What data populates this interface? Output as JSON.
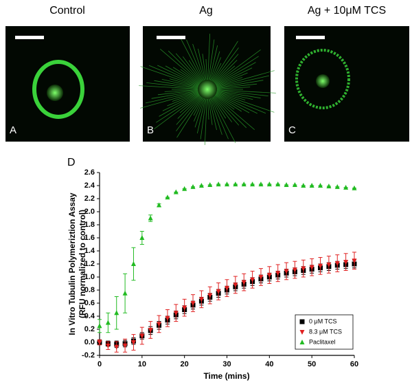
{
  "panels": [
    {
      "title": "Control",
      "letter": "A"
    },
    {
      "title": "Ag",
      "letter": "B"
    },
    {
      "title": "Ag + 10μM TCS",
      "letter": "C"
    }
  ],
  "chart_data": {
    "type": "scatter",
    "label": "D",
    "xlabel": "Time (mins)",
    "ylabel": [
      "In Vitro Tubulin Polymeriztion Assay",
      "(RFU normalized to control)"
    ],
    "x": [
      0,
      2,
      4,
      6,
      8,
      10,
      12,
      14,
      16,
      18,
      20,
      22,
      24,
      26,
      28,
      30,
      32,
      34,
      36,
      38,
      40,
      42,
      44,
      46,
      48,
      50,
      52,
      54,
      56,
      58,
      60
    ],
    "series": [
      {
        "name": "0 μM TCS",
        "color": "#000000",
        "marker": "square",
        "values": [
          0,
          -0.02,
          -0.03,
          -0.02,
          0.02,
          0.1,
          0.18,
          0.26,
          0.34,
          0.42,
          0.5,
          0.57,
          0.63,
          0.69,
          0.75,
          0.8,
          0.85,
          0.89,
          0.93,
          0.97,
          1.0,
          1.03,
          1.06,
          1.08,
          1.1,
          1.12,
          1.14,
          1.16,
          1.18,
          1.19,
          1.2
        ],
        "errors": [
          0.03,
          0.04,
          0.05,
          0.05,
          0.05,
          0.05,
          0.06,
          0.06,
          0.06,
          0.06,
          0.06,
          0.06,
          0.06,
          0.06,
          0.06,
          0.06,
          0.06,
          0.06,
          0.06,
          0.06,
          0.06,
          0.06,
          0.06,
          0.06,
          0.06,
          0.06,
          0.06,
          0.06,
          0.06,
          0.06,
          0.06
        ]
      },
      {
        "name": "8.3 μM TCS",
        "color": "#e02020",
        "marker": "triangle-down",
        "values": [
          0,
          -0.05,
          -0.07,
          -0.05,
          0,
          0.1,
          0.19,
          0.28,
          0.37,
          0.45,
          0.53,
          0.6,
          0.66,
          0.72,
          0.78,
          0.83,
          0.88,
          0.92,
          0.96,
          1.0,
          1.03,
          1.06,
          1.09,
          1.11,
          1.13,
          1.15,
          1.17,
          1.19,
          1.21,
          1.23,
          1.25
        ],
        "errors": [
          0.04,
          0.06,
          0.08,
          0.1,
          0.12,
          0.13,
          0.13,
          0.13,
          0.13,
          0.13,
          0.13,
          0.13,
          0.13,
          0.13,
          0.13,
          0.13,
          0.13,
          0.13,
          0.13,
          0.13,
          0.13,
          0.13,
          0.13,
          0.13,
          0.13,
          0.13,
          0.13,
          0.13,
          0.13,
          0.13,
          0.13
        ]
      },
      {
        "name": "Paclitaxel",
        "color": "#22bb22",
        "marker": "triangle-up",
        "values": [
          0.25,
          0.3,
          0.45,
          0.75,
          1.2,
          1.6,
          1.9,
          2.1,
          2.22,
          2.3,
          2.35,
          2.38,
          2.4,
          2.41,
          2.42,
          2.42,
          2.42,
          2.42,
          2.42,
          2.42,
          2.42,
          2.42,
          2.41,
          2.41,
          2.4,
          2.4,
          2.4,
          2.39,
          2.38,
          2.37,
          2.36
        ],
        "errors": [
          0.1,
          0.15,
          0.25,
          0.3,
          0.25,
          0.1,
          0.05,
          0.02,
          0,
          0,
          0,
          0,
          0,
          0,
          0,
          0,
          0,
          0,
          0,
          0,
          0,
          0,
          0,
          0,
          0,
          0,
          0,
          0,
          0,
          0,
          0
        ]
      }
    ],
    "xlim": [
      0,
      60
    ],
    "xticks": [
      0,
      10,
      20,
      30,
      40,
      50,
      60
    ],
    "ylim": [
      -0.2,
      2.6
    ],
    "yticks": [
      -0.2,
      {
        "value": 0,
        "label": "0.0"
      },
      0.2,
      0.4,
      0.6,
      0.8,
      {
        "value": 1,
        "label": "1.0"
      },
      1.2,
      1.4,
      1.6,
      1.8,
      {
        "value": 2,
        "label": "2.0"
      },
      2.2,
      2.4,
      2.6
    ],
    "legend": "lower right"
  }
}
